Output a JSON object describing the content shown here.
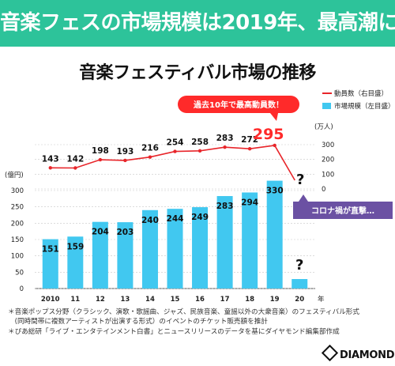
{
  "headline": "音楽フェスの市場規模は2019年、最高潮に",
  "chart_data": {
    "type": "bar",
    "title": "音楽フェスティバル市場の推移",
    "categories": [
      "2010",
      "11",
      "12",
      "13",
      "14",
      "15",
      "16",
      "17",
      "18",
      "19",
      "20"
    ],
    "x_unit": "年",
    "series": [
      {
        "name": "市場規模（左目盛）",
        "type": "bar",
        "axis": "left",
        "values": [
          151,
          159,
          204,
          203,
          240,
          244,
          249,
          283,
          294,
          330,
          null
        ],
        "labels": [
          "151",
          "159",
          "204",
          "203",
          "240",
          "244",
          "249",
          "283",
          "294",
          "330",
          "?"
        ]
      },
      {
        "name": "動員数（右目盛）",
        "type": "line",
        "axis": "right",
        "values": [
          143,
          142,
          198,
          193,
          216,
          254,
          258,
          283,
          272,
          295,
          null
        ],
        "labels": [
          "143",
          "142",
          "198",
          "193",
          "216",
          "254",
          "258",
          "283",
          "272",
          "295",
          "?"
        ]
      }
    ],
    "left_axis": {
      "unit": "(億円)",
      "range": [
        0,
        350
      ],
      "ticks": [
        "0",
        "50",
        "100",
        "150",
        "200",
        "250",
        "300"
      ]
    },
    "right_axis": {
      "unit": "(万人)",
      "range": [
        0,
        600
      ],
      "ticks": [
        "0",
        "100",
        "200",
        "300"
      ]
    },
    "annotations": {
      "peak": "過去10年で最高動員数！",
      "covid": "コロナ禍が直撃…"
    },
    "colors": {
      "bar": "#41c8f0",
      "line": "#e8252a",
      "accent": "#ff2a2a",
      "callout": "#6b51a3"
    }
  },
  "notes": [
    "＊音楽ポップス分野（クラシック、演歌・歌謡曲、ジャズ、民族音楽、童謡以外の大衆音楽）のフェスティバル形式",
    "　(同時間帯に複数アーティストが出演する形式）のイベントのチケット販売額を推計",
    "＊ぴあ総研「ライブ・エンタテインメント白書」とニュースリリースのデータを基にダイヤモンド編集部作成"
  ],
  "brand": "DIAMOND"
}
